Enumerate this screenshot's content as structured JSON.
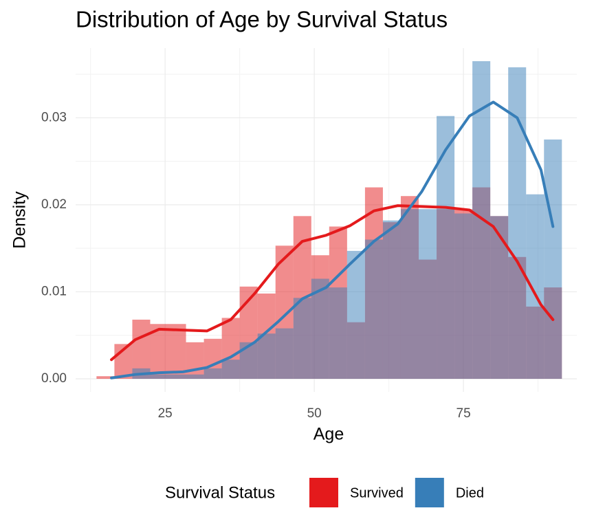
{
  "chart_data": {
    "type": "histogram",
    "title": "Distribution of Age by Survival Status",
    "x_label": "Age",
    "y_label": "Density",
    "bins": [
      13.5,
      16.5,
      19.5,
      22.5,
      25.5,
      28.5,
      31.5,
      34.5,
      37.5,
      40.5,
      43.5,
      46.5,
      49.5,
      52.5,
      55.5,
      58.5,
      61.5,
      64.5,
      67.5,
      70.5,
      73.5,
      76.5,
      79.5,
      82.5,
      85.5,
      88.5,
      91.5
    ],
    "series": [
      {
        "name": "Survived",
        "color": "#E41A1C",
        "values": [
          0.0003,
          0.004,
          0.0068,
          0.0063,
          0.0063,
          0.0042,
          0.0046,
          0.007,
          0.0106,
          0.0098,
          0.0153,
          0.0187,
          0.0142,
          0.0175,
          0.0065,
          0.022,
          0.018,
          0.021,
          0.0137,
          0.0195,
          0.0195,
          0.022,
          0.0187,
          0.014,
          0.0083,
          0.0105
        ],
        "density_x": [
          16,
          20,
          24,
          28,
          32,
          36,
          40,
          44,
          48,
          52,
          56,
          60,
          64,
          68,
          72,
          76,
          80,
          84,
          88,
          90
        ],
        "density_y": [
          0.0022,
          0.0045,
          0.0057,
          0.0056,
          0.0055,
          0.0068,
          0.0098,
          0.0132,
          0.0158,
          0.0165,
          0.0176,
          0.0193,
          0.0199,
          0.0198,
          0.0197,
          0.0194,
          0.0175,
          0.0135,
          0.0085,
          0.0068
        ]
      },
      {
        "name": "Died",
        "color": "#377EB8",
        "values": [
          0,
          0,
          0.0012,
          0.0005,
          0.0005,
          0.0005,
          0.0012,
          0.0022,
          0.0042,
          0.0052,
          0.0058,
          0.0093,
          0.0115,
          0.0105,
          0.0147,
          0.016,
          0.0182,
          0.0195,
          0.0195,
          0.0302,
          0.019,
          0.0365,
          0.0187,
          0.0358,
          0.0212,
          0.0275
        ],
        "density_x": [
          16,
          20,
          24,
          28,
          32,
          36,
          40,
          44,
          48,
          52,
          56,
          60,
          64,
          68,
          72,
          76,
          80,
          84,
          88,
          90
        ],
        "density_y": [
          0.0001,
          0.0005,
          0.0007,
          0.0008,
          0.0013,
          0.0025,
          0.0042,
          0.0066,
          0.0092,
          0.0105,
          0.0132,
          0.0158,
          0.0178,
          0.0215,
          0.0263,
          0.0302,
          0.0318,
          0.03,
          0.024,
          0.0175
        ]
      }
    ],
    "legend_title": "Survival Status",
    "legend": "bottom",
    "grid": true,
    "xlim": [
      10,
      94
    ],
    "xticks": [
      25,
      50,
      75
    ],
    "ylim": [
      -0.0015,
      0.038
    ],
    "yticks": [
      {
        "value": 0,
        "label": "0.00"
      },
      {
        "value": 0.01,
        "label": "0.01"
      },
      {
        "value": 0.02,
        "label": "0.02"
      },
      {
        "value": 0.03,
        "label": "0.03"
      }
    ]
  }
}
